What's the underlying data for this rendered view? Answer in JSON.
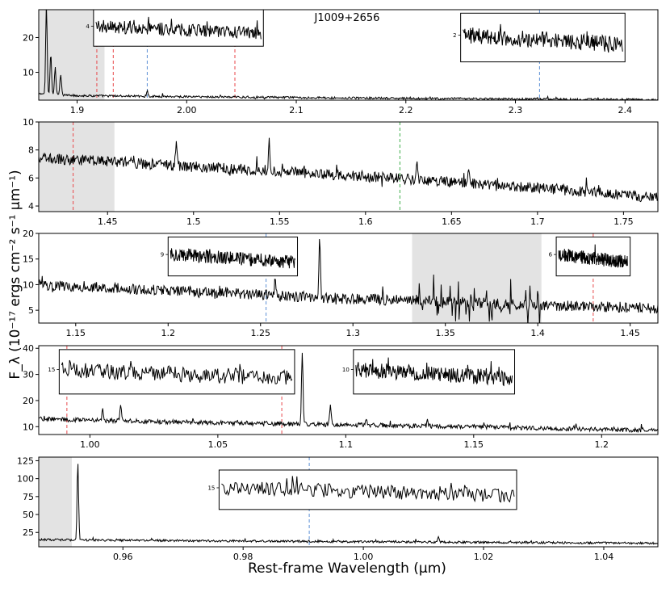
{
  "figure": {
    "xlabel": "Rest-frame Wavelength (μm)",
    "ylabel": "F_λ (10⁻¹⁷ ergs cm⁻² s⁻¹ μm⁻¹)",
    "colors": {
      "spectrum": "#000000",
      "shade": "#e3e3e3",
      "red_line": "#e8474a",
      "blue_line": "#5b8fd6",
      "green_line": "#3fae49"
    }
  },
  "chart_data": [
    {
      "type": "line",
      "id": "panel1",
      "title": "J1009+2656",
      "xlim": [
        1.865,
        2.43
      ],
      "ylim": [
        2,
        28
      ],
      "xticks": [
        1.9,
        2.0,
        2.1,
        2.2,
        2.3,
        2.4
      ],
      "yticks": [
        10,
        20
      ],
      "continuum": [
        [
          1.865,
          3.8
        ],
        [
          1.9,
          3.3
        ],
        [
          2.0,
          3.0
        ],
        [
          2.2,
          2.5
        ],
        [
          2.43,
          2.1
        ]
      ],
      "shade": [
        [
          1.865,
          1.925
        ]
      ],
      "vlines": [
        {
          "x": 1.918,
          "color": "red"
        },
        {
          "x": 1.933,
          "color": "red"
        },
        {
          "x": 1.964,
          "color": "blue"
        },
        {
          "x": 2.044,
          "color": "red"
        },
        {
          "x": 2.322,
          "color": "blue"
        }
      ],
      "peaks": [
        [
          1.872,
          26
        ],
        [
          1.876,
          12
        ],
        [
          1.88,
          8
        ],
        [
          1.885,
          6
        ],
        [
          1.964,
          1.5
        ]
      ],
      "insets": [
        {
          "label": "4",
          "x0": 1.915,
          "x1": 2.07,
          "y0": 17.5,
          "y1": 28
        },
        {
          "label": "2",
          "x0": 2.25,
          "x1": 2.4,
          "y0": 13,
          "y1": 27
        }
      ]
    },
    {
      "type": "line",
      "id": "panel2",
      "xlim": [
        1.41,
        1.77
      ],
      "ylim": [
        3.6,
        10
      ],
      "xticks": [
        1.45,
        1.5,
        1.55,
        1.6,
        1.65,
        1.7,
        1.75
      ],
      "yticks": [
        4,
        6,
        8,
        10
      ],
      "continuum": [
        [
          1.41,
          7.4
        ],
        [
          1.45,
          7.2
        ],
        [
          1.5,
          6.8
        ],
        [
          1.55,
          6.5
        ],
        [
          1.6,
          6.1
        ],
        [
          1.65,
          5.7
        ],
        [
          1.7,
          5.3
        ],
        [
          1.77,
          4.6
        ]
      ],
      "shade": [
        [
          1.41,
          1.454
        ]
      ],
      "vlines": [
        {
          "x": 1.43,
          "color": "red"
        },
        {
          "x": 1.62,
          "color": "green"
        }
      ],
      "peaks": [
        [
          1.49,
          1.7
        ],
        [
          1.544,
          2.2
        ],
        [
          1.63,
          1.3
        ],
        [
          1.66,
          1.0
        ]
      ],
      "insets": []
    },
    {
      "type": "line",
      "id": "panel3",
      "xlim": [
        1.13,
        1.465
      ],
      "ylim": [
        2.5,
        20
      ],
      "xticks": [
        1.15,
        1.2,
        1.25,
        1.3,
        1.35,
        1.4,
        1.45
      ],
      "yticks": [
        5,
        10,
        15,
        20
      ],
      "continuum": [
        [
          1.13,
          10
        ],
        [
          1.2,
          8.8
        ],
        [
          1.3,
          7.2
        ],
        [
          1.35,
          6.7
        ],
        [
          1.4,
          6.0
        ],
        [
          1.465,
          5.4
        ]
      ],
      "shade": [
        [
          1.332,
          1.402
        ]
      ],
      "vlines": [
        {
          "x": 1.253,
          "color": "blue"
        },
        {
          "x": 1.43,
          "color": "red"
        }
      ],
      "peaks": [
        [
          1.282,
          12
        ],
        [
          1.258,
          3
        ]
      ],
      "insets": [
        {
          "label": "9",
          "x0": 1.2,
          "x1": 1.27,
          "y0": 11.7,
          "y1": 19.3
        },
        {
          "label": "6",
          "x0": 1.41,
          "x1": 1.45,
          "y0": 11.7,
          "y1": 19.3
        }
      ]
    },
    {
      "type": "line",
      "id": "panel4",
      "xlim": [
        0.98,
        1.222
      ],
      "ylim": [
        7,
        41
      ],
      "xticks": [
        1.0,
        1.05,
        1.1,
        1.15,
        1.2
      ],
      "yticks": [
        10,
        20,
        30,
        40
      ],
      "continuum": [
        [
          0.98,
          13
        ],
        [
          1.02,
          12
        ],
        [
          1.08,
          11
        ],
        [
          1.15,
          10
        ],
        [
          1.222,
          8.5
        ]
      ],
      "shade": [],
      "vlines": [
        {
          "x": 0.991,
          "color": "red"
        },
        {
          "x": 1.075,
          "color": "red"
        }
      ],
      "peaks": [
        [
          1.083,
          27
        ],
        [
          1.094,
          8
        ],
        [
          1.005,
          4
        ],
        [
          1.012,
          6
        ],
        [
          1.108,
          3
        ],
        [
          1.132,
          2
        ]
      ],
      "insets": [
        {
          "label": "15",
          "x0": 0.988,
          "x1": 1.08,
          "y0": 22.5,
          "y1": 39.5
        },
        {
          "label": "10",
          "x0": 1.103,
          "x1": 1.166,
          "y0": 22.5,
          "y1": 39.5
        }
      ]
    },
    {
      "type": "line",
      "id": "panel5",
      "xlim": [
        0.946,
        1.049
      ],
      "ylim": [
        5,
        130
      ],
      "xticks": [
        0.96,
        0.98,
        1.0,
        1.02,
        1.04
      ],
      "yticks": [
        25,
        50,
        75,
        100,
        125
      ],
      "continuum": [
        [
          0.946,
          15
        ],
        [
          0.96,
          14
        ],
        [
          1.0,
          12
        ],
        [
          1.049,
          10
        ]
      ],
      "shade": [
        [
          0.946,
          0.9515
        ]
      ],
      "vlines": [
        {
          "x": 0.991,
          "color": "blue"
        }
      ],
      "peaks": [
        [
          0.9525,
          108
        ],
        [
          1.0125,
          7
        ]
      ],
      "insets": [
        {
          "label": "15",
          "x0": 0.976,
          "x1": 1.0255,
          "y0": 57,
          "y1": 112
        }
      ]
    }
  ]
}
